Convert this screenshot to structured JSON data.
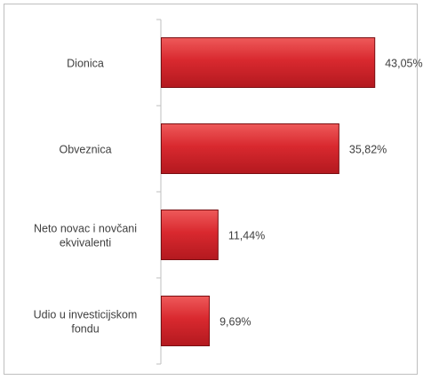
{
  "chart_data": {
    "type": "bar",
    "orientation": "horizontal",
    "categories": [
      [
        "Dionica"
      ],
      [
        "Obveznica"
      ],
      [
        "Neto novac i novčani",
        "ekvivalenti"
      ],
      [
        "Udio u investicijskom",
        "fondu"
      ]
    ],
    "values": [
      43.05,
      35.82,
      11.44,
      9.69
    ],
    "value_labels": [
      "43,05%",
      "35,82%",
      "11,44%",
      "9,69%"
    ],
    "xlim": [
      0,
      50
    ],
    "grid": false,
    "legend": "none",
    "bar_color": "#d9292f",
    "bar_color_light": "#ee5a5a",
    "bar_color_dark": "#b3191f",
    "bar_border": "#7a0e12"
  }
}
